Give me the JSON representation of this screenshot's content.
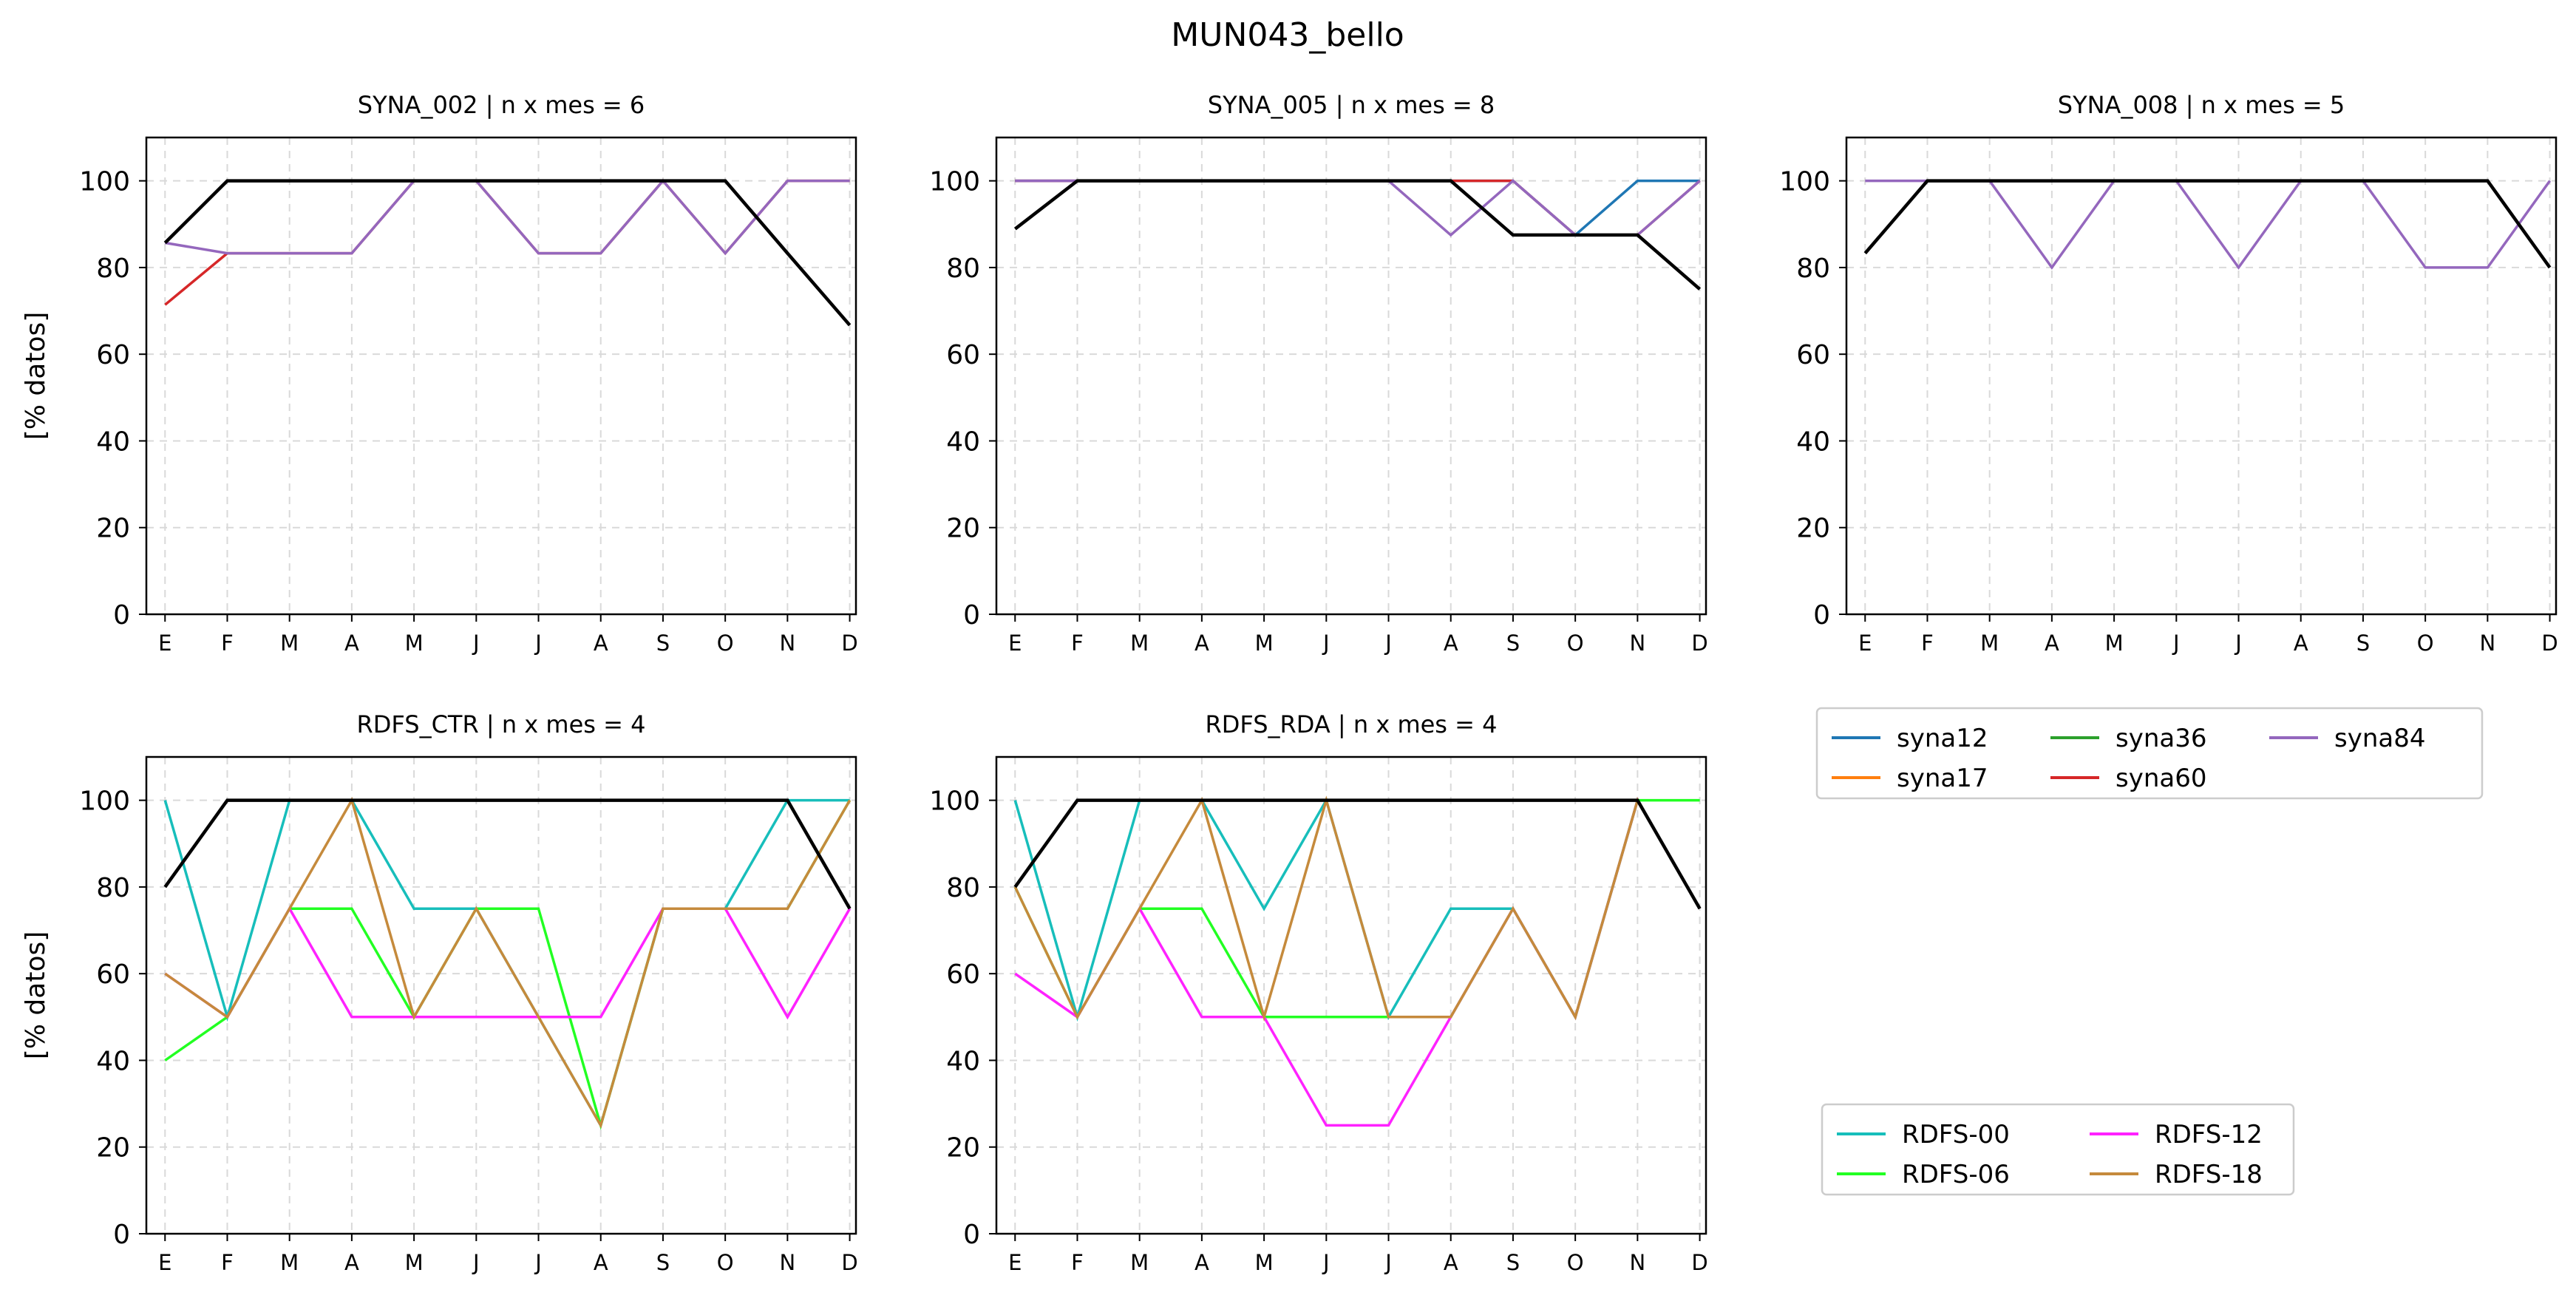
{
  "figure": {
    "title": "MUN043_bello"
  },
  "months": [
    "E",
    "F",
    "M",
    "A",
    "M",
    "J",
    "J",
    "A",
    "S",
    "O",
    "N",
    "D"
  ],
  "ylim": [
    0,
    110
  ],
  "yticks": [
    0,
    20,
    40,
    60,
    80,
    100
  ],
  "colors": {
    "syna12": "#1f77b4",
    "syna17": "#ff7f0e",
    "syna36": "#2ca02c",
    "syna60": "#d62728",
    "syna84": "#9467bd",
    "reference": "#000000",
    "RDFS-00": "#17bebb",
    "RDFS-06": "#22ff22",
    "RDFS-12": "#ff22ff",
    "RDFS-18": "#c58a3c"
  },
  "chart_data": [
    {
      "type": "line",
      "title": "SYNA_002 | n x mes =  6",
      "ylabel": "[% datos]",
      "categories": [
        "E",
        "F",
        "M",
        "A",
        "M",
        "J",
        "J",
        "A",
        "S",
        "O",
        "N",
        "D"
      ],
      "ylim": [
        0,
        110
      ],
      "grid": true,
      "series": [
        {
          "key": "syna60",
          "values": [
            71.4,
            83.3,
            83.3,
            83.3,
            100,
            100,
            83.3,
            83.3,
            100,
            83.3,
            100,
            100
          ]
        },
        {
          "key": "syna84",
          "values": [
            85.7,
            83.3,
            83.3,
            83.3,
            100,
            100,
            83.3,
            83.3,
            100,
            83.3,
            100,
            100
          ]
        },
        {
          "key": "reference",
          "values": [
            85.7,
            100,
            100,
            100,
            100,
            100,
            100,
            100,
            100,
            100,
            83.3,
            66.7
          ]
        }
      ]
    },
    {
      "type": "line",
      "title": "SYNA_005 | n x mes =  8",
      "ylabel": "",
      "categories": [
        "E",
        "F",
        "M",
        "A",
        "M",
        "J",
        "J",
        "A",
        "S",
        "O",
        "N",
        "D"
      ],
      "ylim": [
        0,
        110
      ],
      "grid": true,
      "series": [
        {
          "key": "syna12",
          "values": [
            100,
            100,
            100,
            100,
            100,
            100,
            100,
            100,
            100,
            87.5,
            100,
            100
          ]
        },
        {
          "key": "syna60",
          "values": [
            100,
            100,
            100,
            100,
            100,
            100,
            100,
            100,
            100,
            87.5,
            87.5,
            100
          ]
        },
        {
          "key": "syna84",
          "values": [
            100,
            100,
            100,
            100,
            100,
            100,
            100,
            87.5,
            100,
            87.5,
            87.5,
            100
          ]
        },
        {
          "key": "reference",
          "values": [
            88.9,
            100,
            100,
            100,
            100,
            100,
            100,
            100,
            87.5,
            87.5,
            87.5,
            75
          ]
        }
      ]
    },
    {
      "type": "line",
      "title": "SYNA_008 | n x mes =  5",
      "ylabel": "",
      "categories": [
        "E",
        "F",
        "M",
        "A",
        "M",
        "J",
        "J",
        "A",
        "S",
        "O",
        "N",
        "D"
      ],
      "ylim": [
        0,
        110
      ],
      "grid": true,
      "series": [
        {
          "key": "syna84",
          "values": [
            100,
            100,
            100,
            80,
            100,
            100,
            80,
            100,
            100,
            80,
            80,
            100
          ]
        },
        {
          "key": "reference",
          "values": [
            83.3,
            100,
            100,
            100,
            100,
            100,
            100,
            100,
            100,
            100,
            100,
            80
          ]
        }
      ]
    },
    {
      "type": "line",
      "title": "RDFS_CTR | n x mes =  4",
      "ylabel": "[% datos]",
      "categories": [
        "E",
        "F",
        "M",
        "A",
        "M",
        "J",
        "J",
        "A",
        "S",
        "O",
        "N",
        "D"
      ],
      "ylim": [
        0,
        110
      ],
      "grid": true,
      "series": [
        {
          "key": "RDFS-00",
          "values": [
            100,
            50,
            100,
            100,
            75,
            75,
            50,
            25,
            75,
            75,
            100,
            100
          ]
        },
        {
          "key": "RDFS-06",
          "values": [
            40,
            50,
            75,
            75,
            50,
            75,
            75,
            25,
            75,
            75,
            75,
            100
          ]
        },
        {
          "key": "RDFS-12",
          "values": [
            60,
            50,
            75,
            50,
            50,
            50,
            50,
            50,
            75,
            75,
            50,
            75
          ]
        },
        {
          "key": "RDFS-18",
          "values": [
            60,
            50,
            75,
            100,
            50,
            75,
            50,
            25,
            75,
            75,
            75,
            100
          ]
        },
        {
          "key": "reference",
          "values": [
            80,
            100,
            100,
            100,
            100,
            100,
            100,
            100,
            100,
            100,
            100,
            75
          ]
        }
      ]
    },
    {
      "type": "line",
      "title": "RDFS_RDA | n x mes =  4",
      "ylabel": "",
      "categories": [
        "E",
        "F",
        "M",
        "A",
        "M",
        "J",
        "J",
        "A",
        "S",
        "O",
        "N",
        "D"
      ],
      "ylim": [
        0,
        110
      ],
      "grid": true,
      "series": [
        {
          "key": "RDFS-00",
          "values": [
            100,
            50,
            100,
            100,
            75,
            100,
            50,
            75,
            75,
            50,
            100,
            75
          ]
        },
        {
          "key": "RDFS-06",
          "values": [
            80,
            50,
            75,
            75,
            50,
            50,
            50,
            50,
            75,
            50,
            100,
            100
          ]
        },
        {
          "key": "RDFS-12",
          "values": [
            60,
            50,
            75,
            50,
            50,
            25,
            25,
            50,
            75,
            50,
            100,
            75
          ]
        },
        {
          "key": "RDFS-18",
          "values": [
            80,
            50,
            75,
            100,
            50,
            100,
            50,
            50,
            75,
            50,
            100,
            75
          ]
        },
        {
          "key": "reference",
          "values": [
            80,
            100,
            100,
            100,
            100,
            100,
            100,
            100,
            100,
            100,
            100,
            75
          ]
        }
      ]
    }
  ],
  "legends": [
    {
      "placement": "right-middle",
      "columns": 3,
      "entries": [
        {
          "label": "syna12",
          "key": "syna12"
        },
        {
          "label": "syna17",
          "key": "syna17"
        },
        {
          "label": "syna36",
          "key": "syna36"
        },
        {
          "label": "syna60",
          "key": "syna60"
        },
        {
          "label": "syna84",
          "key": "syna84"
        }
      ]
    },
    {
      "placement": "right-bottom",
      "columns": 2,
      "entries": [
        {
          "label": "RDFS-00",
          "key": "RDFS-00"
        },
        {
          "label": "RDFS-06",
          "key": "RDFS-06"
        },
        {
          "label": "RDFS-12",
          "key": "RDFS-12"
        },
        {
          "label": "RDFS-18",
          "key": "RDFS-18"
        }
      ]
    }
  ]
}
